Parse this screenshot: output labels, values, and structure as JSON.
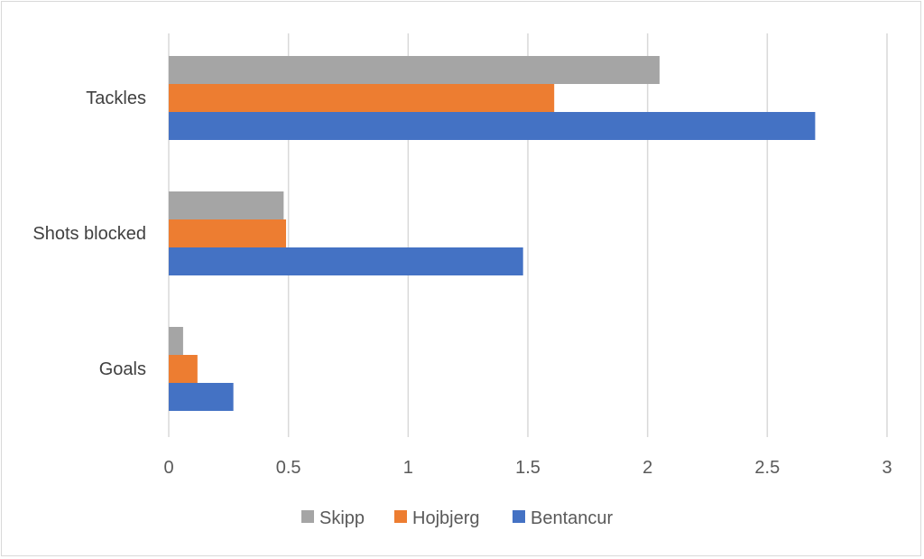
{
  "chart_data": {
    "type": "bar",
    "orientation": "horizontal",
    "categories": [
      "Tackles",
      "Shots blocked",
      "Goals"
    ],
    "series": [
      {
        "name": "Skipp",
        "color": "#a5a5a5",
        "values": [
          2.05,
          0.48,
          0.06
        ]
      },
      {
        "name": "Hojbjerg",
        "color": "#ed7d31",
        "values": [
          1.61,
          0.49,
          0.12
        ]
      },
      {
        "name": "Bentancur",
        "color": "#4472c4",
        "values": [
          2.7,
          1.48,
          0.27
        ]
      }
    ],
    "x_ticks": [
      "0",
      "0.5",
      "1",
      "1.5",
      "2",
      "2.5",
      "3"
    ],
    "xlim": [
      0,
      3
    ],
    "grid": "vertical",
    "legend_position": "bottom"
  }
}
